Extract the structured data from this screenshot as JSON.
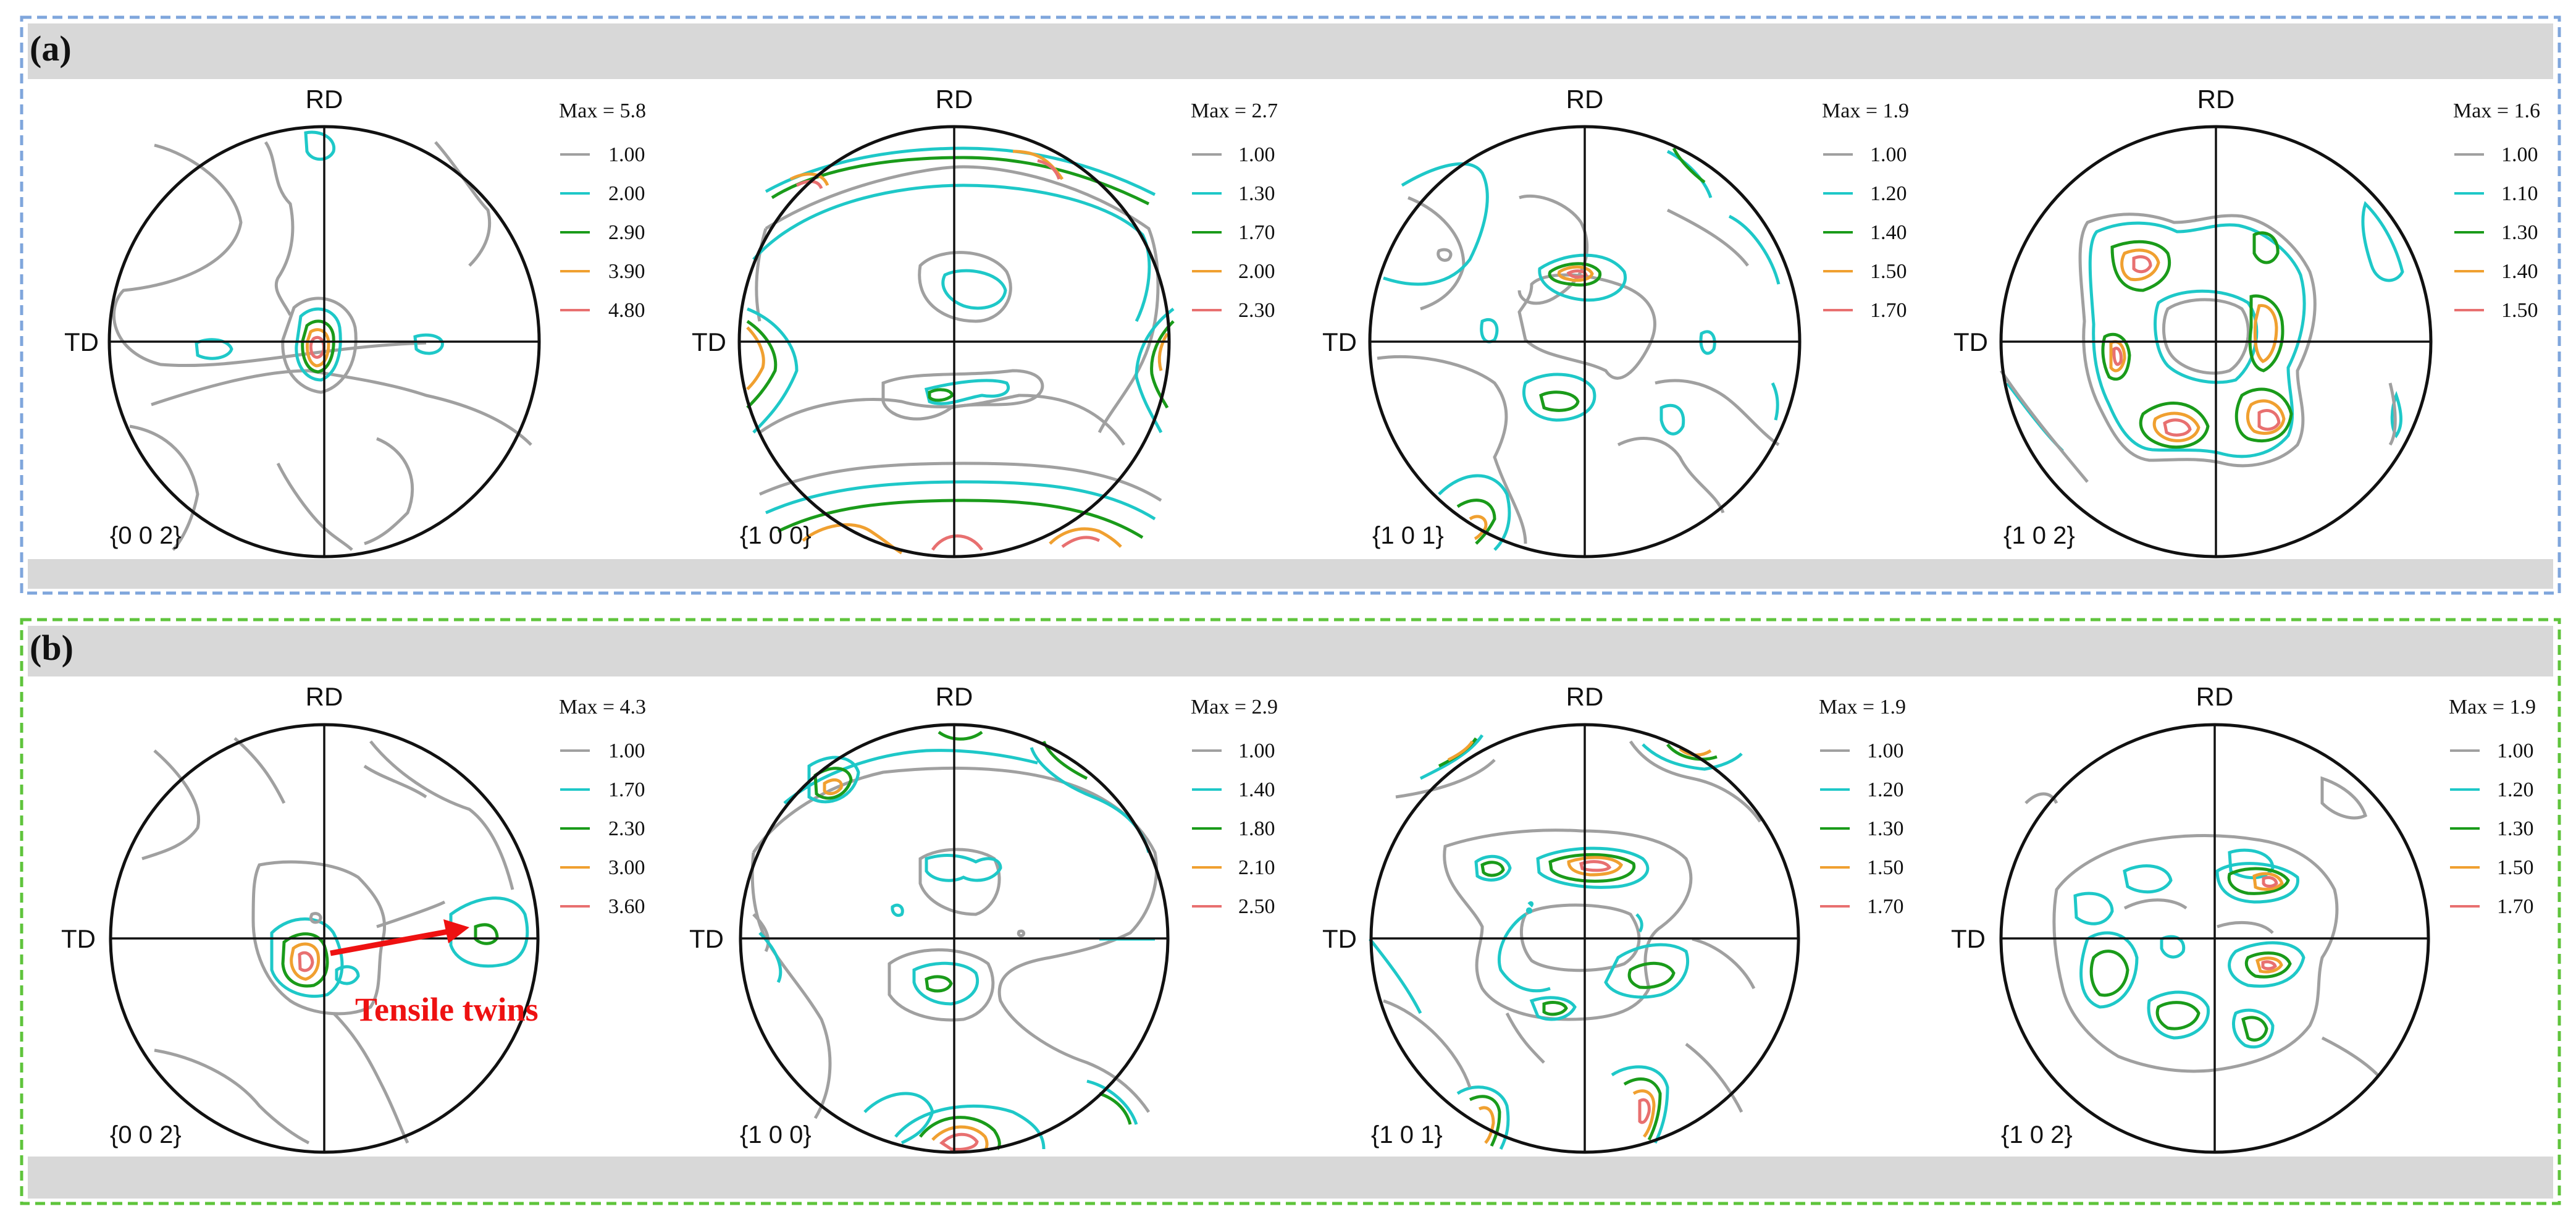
{
  "panels": [
    {
      "label": "(a)",
      "frame_color": "#7fa6dc",
      "figures": [
        {
          "plane": "{0 0 2}",
          "rd": "RD",
          "td": "TD",
          "max": "Max = 5.8",
          "legend": [
            {
              "value": "1.00",
              "color": "#a0a0a0"
            },
            {
              "value": "2.00",
              "color": "#1ec8c8"
            },
            {
              "value": "2.90",
              "color": "#1a9b1a"
            },
            {
              "value": "3.90",
              "color": "#f0a030"
            },
            {
              "value": "4.80",
              "color": "#e87070"
            }
          ]
        },
        {
          "plane": "{1 0 0}",
          "rd": "RD",
          "td": "TD",
          "max": "Max = 2.7",
          "legend": [
            {
              "value": "1.00",
              "color": "#a0a0a0"
            },
            {
              "value": "1.30",
              "color": "#1ec8c8"
            },
            {
              "value": "1.70",
              "color": "#1a9b1a"
            },
            {
              "value": "2.00",
              "color": "#f0a030"
            },
            {
              "value": "2.30",
              "color": "#e87070"
            }
          ]
        },
        {
          "plane": "{1 0 1}",
          "rd": "RD",
          "td": "TD",
          "max": "Max = 1.9",
          "legend": [
            {
              "value": "1.00",
              "color": "#a0a0a0"
            },
            {
              "value": "1.20",
              "color": "#1ec8c8"
            },
            {
              "value": "1.40",
              "color": "#1a9b1a"
            },
            {
              "value": "1.50",
              "color": "#f0a030"
            },
            {
              "value": "1.70",
              "color": "#e87070"
            }
          ]
        },
        {
          "plane": "{1 0 2}",
          "rd": "RD",
          "td": "TD",
          "max": "Max = 1.6",
          "legend": [
            {
              "value": "1.00",
              "color": "#a0a0a0"
            },
            {
              "value": "1.10",
              "color": "#1ec8c8"
            },
            {
              "value": "1.30",
              "color": "#1a9b1a"
            },
            {
              "value": "1.40",
              "color": "#f0a030"
            },
            {
              "value": "1.50",
              "color": "#e87070"
            }
          ]
        }
      ]
    },
    {
      "label": "(b)",
      "frame_color": "#5fc43c",
      "figures": [
        {
          "plane": "{0 0 2}",
          "rd": "RD",
          "td": "TD",
          "max": "Max = 4.3",
          "legend": [
            {
              "value": "1.00",
              "color": "#a0a0a0"
            },
            {
              "value": "1.70",
              "color": "#1ec8c8"
            },
            {
              "value": "2.30",
              "color": "#1a9b1a"
            },
            {
              "value": "3.00",
              "color": "#f0a030"
            },
            {
              "value": "3.60",
              "color": "#e87070"
            }
          ]
        },
        {
          "plane": "{1 0 0}",
          "rd": "RD",
          "td": "TD",
          "max": "Max = 2.9",
          "legend": [
            {
              "value": "1.00",
              "color": "#a0a0a0"
            },
            {
              "value": "1.40",
              "color": "#1ec8c8"
            },
            {
              "value": "1.80",
              "color": "#1a9b1a"
            },
            {
              "value": "2.10",
              "color": "#f0a030"
            },
            {
              "value": "2.50",
              "color": "#e87070"
            }
          ]
        },
        {
          "plane": "{1 0 1}",
          "rd": "RD",
          "td": "TD",
          "max": "Max = 1.9",
          "legend": [
            {
              "value": "1.00",
              "color": "#a0a0a0"
            },
            {
              "value": "1.20",
              "color": "#1ec8c8"
            },
            {
              "value": "1.30",
              "color": "#1a9b1a"
            },
            {
              "value": "1.50",
              "color": "#f0a030"
            },
            {
              "value": "1.70",
              "color": "#e87070"
            }
          ]
        },
        {
          "plane": "{1 0 2}",
          "rd": "RD",
          "td": "TD",
          "max": "Max = 1.9",
          "legend": [
            {
              "value": "1.00",
              "color": "#a0a0a0"
            },
            {
              "value": "1.20",
              "color": "#1ec8c8"
            },
            {
              "value": "1.30",
              "color": "#1a9b1a"
            },
            {
              "value": "1.50",
              "color": "#f0a030"
            },
            {
              "value": "1.70",
              "color": "#e87070"
            }
          ]
        }
      ]
    }
  ],
  "annotation": {
    "text": "Tensile twins",
    "color": "#ee1111"
  }
}
